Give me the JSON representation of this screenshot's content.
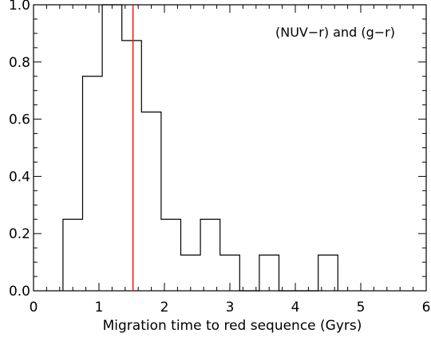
{
  "chart_data": {
    "type": "histogram",
    "xlabel": "Migration time to red sequence (Gyrs)",
    "ylabel": "",
    "annotation": "(NUV−r) and (g−r)",
    "xlim": [
      0,
      6
    ],
    "ylim": [
      0,
      1.0
    ],
    "x_ticks": [
      "0",
      "1",
      "2",
      "3",
      "4",
      "5",
      "6"
    ],
    "y_ticks": [
      "0.0",
      "0.2",
      "0.4",
      "0.6",
      "0.8",
      "1.0"
    ],
    "bin_width": 0.3,
    "bins": [
      {
        "x_start": 0.45,
        "value": 0.25
      },
      {
        "x_start": 0.75,
        "value": 0.75
      },
      {
        "x_start": 1.05,
        "value": 1.0
      },
      {
        "x_start": 1.35,
        "value": 0.875
      },
      {
        "x_start": 1.65,
        "value": 0.625
      },
      {
        "x_start": 1.95,
        "value": 0.25
      },
      {
        "x_start": 2.25,
        "value": 0.125
      },
      {
        "x_start": 2.55,
        "value": 0.25
      },
      {
        "x_start": 2.85,
        "value": 0.125
      },
      {
        "x_start": 3.15,
        "value": 0.0
      },
      {
        "x_start": 3.45,
        "value": 0.125
      },
      {
        "x_start": 3.75,
        "value": 0.0
      },
      {
        "x_start": 4.05,
        "value": 0.0
      },
      {
        "x_start": 4.35,
        "value": 0.125
      }
    ],
    "vertical_line": {
      "x": 1.52,
      "color": "#ff0000"
    },
    "line_color": "#000000",
    "axis_color": "#000000"
  }
}
